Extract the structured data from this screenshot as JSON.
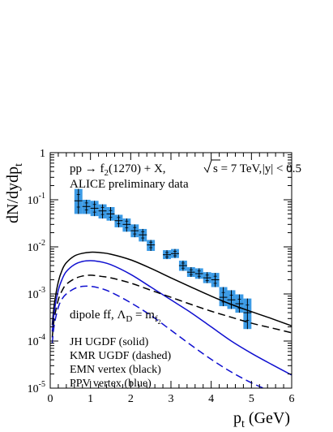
{
  "chart_data": {
    "type": "scatter",
    "xlabel_main": "p",
    "xlabel_sub": "t",
    "xlabel_unit": " (GeV)",
    "ylabel_main": "dN/dydp",
    "ylabel_sub": "t",
    "xlim": [
      0,
      6
    ],
    "ylim": [
      1e-05,
      1
    ],
    "yscale": "log",
    "x_ticks": [
      "0",
      "1",
      "2",
      "3",
      "4",
      "5",
      "6"
    ],
    "y_ticks": [
      {
        "base": "10",
        "exp": "-5"
      },
      {
        "base": "10",
        "exp": "-4"
      },
      {
        "base": "10",
        "exp": "-3"
      },
      {
        "base": "10",
        "exp": "-2"
      },
      {
        "base": "10",
        "exp": "-1"
      },
      {
        "base": "1",
        "exp": ""
      }
    ],
    "annotations": {
      "process_a": "pp → f",
      "process_sub": "2",
      "process_b": "(1270) + X,",
      "sqrt_s": "s = 7 TeV,",
      "rapidity": "|y| < 0.5",
      "dataset": "ALICE preliminary data",
      "formfactor_a": "dipole ff, Λ",
      "formfactor_sub": "D",
      "formfactor_b": " = m",
      "formfactor_sub2": "f",
      "formfactor_sub3": "2",
      "legend_1": "JH UGDF (solid)",
      "legend_2": "KMR UGDF (dashed)",
      "legend_3": "EMN vertex (black)",
      "legend_4": "PPV vertex (blue)"
    },
    "colors": {
      "data_box": "#3c9be6",
      "blue_curve": "#1010d0",
      "black_curve": "#000000"
    },
    "data_points": [
      {
        "x": 0.7,
        "y": 0.095,
        "ylo": 0.05,
        "yhi": 0.17,
        "xerr": 0.1
      },
      {
        "x": 0.9,
        "y": 0.072,
        "ylo": 0.05,
        "yhi": 0.1,
        "xerr": 0.1
      },
      {
        "x": 1.1,
        "y": 0.066,
        "ylo": 0.045,
        "yhi": 0.095,
        "xerr": 0.1
      },
      {
        "x": 1.3,
        "y": 0.058,
        "ylo": 0.04,
        "yhi": 0.08,
        "xerr": 0.1
      },
      {
        "x": 1.5,
        "y": 0.05,
        "ylo": 0.036,
        "yhi": 0.07,
        "xerr": 0.1
      },
      {
        "x": 1.7,
        "y": 0.036,
        "ylo": 0.026,
        "yhi": 0.048,
        "xerr": 0.1
      },
      {
        "x": 1.9,
        "y": 0.03,
        "ylo": 0.021,
        "yhi": 0.04,
        "xerr": 0.1
      },
      {
        "x": 2.1,
        "y": 0.022,
        "ylo": 0.016,
        "yhi": 0.03,
        "xerr": 0.1
      },
      {
        "x": 2.3,
        "y": 0.018,
        "ylo": 0.013,
        "yhi": 0.024,
        "xerr": 0.1
      },
      {
        "x": 2.5,
        "y": 0.011,
        "ylo": 0.0082,
        "yhi": 0.014,
        "xerr": 0.1
      },
      {
        "x": 2.9,
        "y": 0.0068,
        "ylo": 0.0055,
        "yhi": 0.0085,
        "xerr": 0.1
      },
      {
        "x": 3.1,
        "y": 0.0072,
        "ylo": 0.0058,
        "yhi": 0.009,
        "xerr": 0.1
      },
      {
        "x": 3.3,
        "y": 0.004,
        "ylo": 0.0031,
        "yhi": 0.0051,
        "xerr": 0.1
      },
      {
        "x": 3.5,
        "y": 0.0029,
        "ylo": 0.0023,
        "yhi": 0.0037,
        "xerr": 0.1
      },
      {
        "x": 3.7,
        "y": 0.0027,
        "ylo": 0.0021,
        "yhi": 0.0035,
        "xerr": 0.1
      },
      {
        "x": 3.9,
        "y": 0.0022,
        "ylo": 0.0017,
        "yhi": 0.0029,
        "xerr": 0.1
      },
      {
        "x": 4.1,
        "y": 0.002,
        "ylo": 0.0014,
        "yhi": 0.0028,
        "xerr": 0.1
      },
      {
        "x": 4.3,
        "y": 0.00085,
        "ylo": 0.00055,
        "yhi": 0.0014,
        "xerr": 0.1
      },
      {
        "x": 4.5,
        "y": 0.00075,
        "ylo": 0.00048,
        "yhi": 0.0012,
        "xerr": 0.1
      },
      {
        "x": 4.7,
        "y": 0.00062,
        "ylo": 0.0004,
        "yhi": 0.00098,
        "xerr": 0.1
      },
      {
        "x": 4.9,
        "y": 0.0004,
        "ylo": 0.00018,
        "yhi": 0.0008,
        "xerr": 0.1
      }
    ],
    "series": [
      {
        "style": "solid",
        "color": "black",
        "x": [
          0.05,
          0.1,
          0.2,
          0.3,
          0.4,
          0.6,
          0.8,
          1.0,
          1.2,
          1.5,
          2.0,
          2.5,
          3.0,
          3.5,
          4.0,
          4.5,
          5.0,
          5.5,
          6.0
        ],
        "y": [
          0.00022,
          0.0006,
          0.0018,
          0.0033,
          0.0046,
          0.0064,
          0.0073,
          0.0077,
          0.0076,
          0.007,
          0.0053,
          0.0035,
          0.0022,
          0.0014,
          0.0009,
          0.0006,
          0.00042,
          0.0003,
          0.00021
        ]
      },
      {
        "style": "solid",
        "color": "blue",
        "x": [
          0.05,
          0.1,
          0.2,
          0.3,
          0.4,
          0.6,
          0.8,
          1.0,
          1.2,
          1.5,
          2.0,
          2.5,
          3.0,
          3.5,
          4.0,
          4.5,
          5.0,
          5.5,
          6.0
        ],
        "y": [
          0.00016,
          0.00042,
          0.0012,
          0.0021,
          0.003,
          0.0042,
          0.0049,
          0.0051,
          0.0049,
          0.0042,
          0.0026,
          0.0014,
          0.00075,
          0.0004,
          0.0002,
          0.0001,
          5.5e-05,
          3.2e-05,
          1.9e-05
        ]
      },
      {
        "style": "dashed",
        "color": "black",
        "x": [
          0.05,
          0.1,
          0.2,
          0.3,
          0.4,
          0.6,
          0.8,
          1.0,
          1.2,
          1.5,
          2.0,
          2.5,
          3.0,
          3.5,
          4.0,
          4.5,
          5.0,
          5.5,
          6.0
        ],
        "y": [
          0.00012,
          0.0003,
          0.00075,
          0.0012,
          0.0016,
          0.0021,
          0.0024,
          0.0025,
          0.0024,
          0.0022,
          0.0017,
          0.0012,
          0.00085,
          0.0006,
          0.00043,
          0.00032,
          0.00024,
          0.00019,
          0.00015
        ]
      },
      {
        "style": "dashed",
        "color": "blue",
        "x": [
          0.05,
          0.1,
          0.2,
          0.3,
          0.4,
          0.6,
          0.8,
          1.0,
          1.2,
          1.5,
          2.0,
          2.5,
          3.0,
          3.5,
          4.0,
          4.5,
          5.0,
          5.5,
          6.0
        ],
        "y": [
          9e-05,
          0.00022,
          0.00052,
          0.0008,
          0.001,
          0.0013,
          0.00145,
          0.00145,
          0.00135,
          0.0011,
          0.00065,
          0.00035,
          0.00017,
          8.2e-05,
          4.1e-05,
          2.2e-05,
          1.3e-05,
          8.5e-06,
          6e-06
        ]
      }
    ]
  }
}
